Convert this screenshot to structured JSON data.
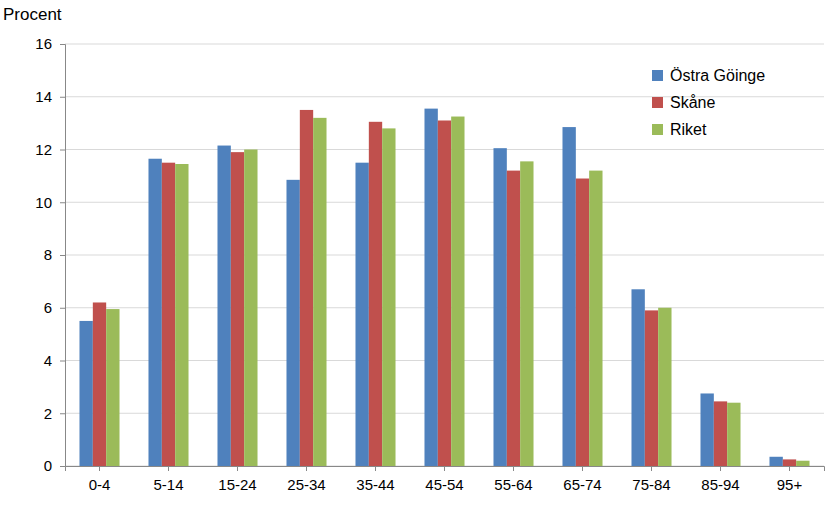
{
  "chart_data": {
    "type": "bar",
    "ylabel": "Procent",
    "categories": [
      "0-4",
      "5-14",
      "15-24",
      "25-34",
      "35-44",
      "45-54",
      "55-64",
      "65-74",
      "75-84",
      "85-94",
      "95+"
    ],
    "series": [
      {
        "name": "Östra Göinge",
        "color": "#4f81bd",
        "values": [
          5.5,
          11.65,
          12.15,
          10.85,
          11.5,
          13.55,
          12.05,
          12.85,
          6.7,
          2.75,
          0.35
        ]
      },
      {
        "name": "Skåne",
        "color": "#c0504d",
        "values": [
          6.2,
          11.5,
          11.9,
          13.5,
          13.05,
          13.1,
          11.2,
          10.9,
          5.9,
          2.45,
          0.25
        ]
      },
      {
        "name": "Riket",
        "color": "#9bbb59",
        "values": [
          5.95,
          11.45,
          12.0,
          13.2,
          12.8,
          13.25,
          11.55,
          11.2,
          6.0,
          2.4,
          0.2
        ]
      }
    ],
    "ylim": [
      0,
      16
    ],
    "yticks": [
      0,
      2,
      4,
      6,
      8,
      10,
      12,
      14,
      16
    ],
    "grid": true,
    "legend": "top-right"
  }
}
